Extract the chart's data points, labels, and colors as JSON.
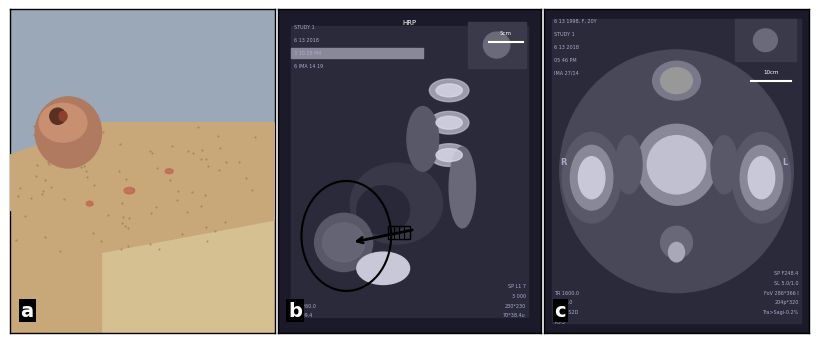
{
  "figure_width": 8.04,
  "figure_height": 3.37,
  "dpi": 100,
  "bg_color": "#ffffff",
  "panel_a": {
    "bg_top": "#9BA8B8",
    "bg_skin": "#C8A878",
    "bg_cloth": "#D4C090",
    "mass_color": "#B07A60",
    "mass_highlight": "#C89070",
    "scar_dark": "#5A3020",
    "scar_red": "#8B4030",
    "hair_color": "#7A5C3C",
    "mark_color": "#C06050"
  },
  "panel_b": {
    "bg": "#1A1A2A",
    "inner_bg": "#2A2A3A",
    "vertebra1": "#B8B8C8",
    "vertebra2": "#D8D8E8",
    "bladder1": "#383848",
    "bladder2": "#282838",
    "mass1": "#585868",
    "mass2": "#686878",
    "bone": "#C8C8D8",
    "skin_bar": "#888898",
    "text_color": "#AAAACC",
    "header": "HRP",
    "info_left": [
      "STUDY 1",
      "6 13 2018",
      "3 10 28 PM",
      "6 IMA 14 19"
    ],
    "info_bl_left": [
      "TR 260.0",
      "TE 99.4"
    ],
    "info_br_right": [
      "SP L1 7",
      "3 000",
      "230*230",
      "70*38.4u"
    ],
    "scale_label": "5cm",
    "label": "b"
  },
  "panel_c": {
    "bg": "#1A1A2A",
    "inner_bg": "#2A2A3A",
    "body_color": "#484858",
    "central1": "#888898",
    "central2": "#C0C0D0",
    "femur1": "#585868",
    "femur2": "#888898",
    "femur3": "#C8C8D8",
    "mass1": "#787888",
    "mass2": "#989898",
    "post1": "#686878",
    "post2": "#A8A8B8",
    "muscle": "#585868",
    "text_color": "#AAAACC",
    "info_tl": [
      "6 13 1998, F, 20Y",
      "STUDY 1",
      "6 13 2018",
      "05 46 PM",
      "IMA 27/14"
    ],
    "info_bl": [
      "TR 1600.0",
      "TE 95.0",
      "RM DIS2D",
      "P3-5"
    ],
    "info_br": [
      "SP F248.4",
      "SL 5.0/1.0",
      "FoV 286*366 l",
      "204p*320",
      "Tra>Sagi-0.2%"
    ],
    "scale_label": "10cm",
    "label": "c"
  }
}
